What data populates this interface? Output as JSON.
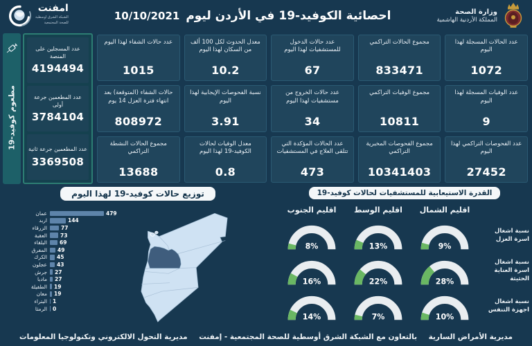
{
  "header": {
    "title": "احصائية الكوفيد-19 في الأردن ليوم",
    "date": "10/10/2021",
    "ministry": {
      "line1": "وزارة الصحة",
      "line2": "المملكة الأردنية الهاشمية"
    },
    "emphnet": {
      "name": "امفنت",
      "tag1": "الشبكة الشرق اوسطية",
      "tag2": "للصحة المجتمعية"
    }
  },
  "stats": [
    {
      "label": "عدد الحالات المسجلة لهذا اليوم",
      "value": "1072"
    },
    {
      "label": "مجموع الحالات التراكمي",
      "value": "833471"
    },
    {
      "label": "عدد حالات الدخول للمستشفيات لهذا اليوم",
      "value": "67"
    },
    {
      "label": "معدل الحدوث لكل 100 ألف من السكان لهذا اليوم",
      "value": "10.2"
    },
    {
      "label": "عدد حالات الشفاء لهذا اليوم",
      "value": "1015"
    },
    {
      "label": "عدد الوفيات المسجلة لهذا اليوم",
      "value": "9"
    },
    {
      "label": "مجموع الوفيات التراكمي",
      "value": "10811"
    },
    {
      "label": "عدد حالات الخروج من مستشفيات لهذا اليوم",
      "value": "34"
    },
    {
      "label": "نسبة الفحوصات الإيجابية لهذا اليوم",
      "value": "3.91"
    },
    {
      "label": "حالات الشفاء (المتوقعة) بعد انتهاء فترة العزل 14 يوم",
      "value": "808972"
    },
    {
      "label": "عدد الفحوصات التراكمي لهذا اليوم",
      "value": "27452"
    },
    {
      "label": "مجموع الفحوصات المخبرية التراكمي",
      "value": "10341403"
    },
    {
      "label": "عدد الحالات المؤكدة التي تتلقى العلاج في المستشفيات",
      "value": "473"
    },
    {
      "label": "معدل الوفيات لحالات الكوفيد-19 لهذا اليوم",
      "value": "0.8"
    },
    {
      "label": "مجموع الحالات النشطة التراكمي",
      "value": "13688"
    }
  ],
  "vaccination": {
    "side_label": "مطعوم كوفيد-19",
    "boxes": [
      {
        "label": "عدد المسجلين على المنصة",
        "value": "4194494"
      },
      {
        "label": "عدد المطعمين جرعة أولى",
        "value": "3784104"
      },
      {
        "label": "عدد المطعمين جرعة ثانية",
        "value": "3369508"
      }
    ]
  },
  "chart_data": [
    {
      "type": "bar",
      "orientation": "horizontal",
      "title": "توزيع حالات كوفيد-19 لهذا اليوم",
      "categories": [
        "عمان",
        "اربد",
        "الزرقاء",
        "العقبة",
        "البلقاء",
        "المفرق",
        "الكرك",
        "عجلون",
        "جرش",
        "مادبا",
        "الطفيلة",
        "معان",
        "البتراء",
        "الرمثا"
      ],
      "values": [
        479,
        144,
        77,
        73,
        69,
        49,
        45,
        43,
        27,
        27,
        19,
        19,
        1,
        0
      ],
      "xlim": [
        0,
        479
      ],
      "bar_color": "#5e84aa"
    },
    {
      "type": "gauge",
      "title": "القدرة الاستيعابية للمستشفيات لحالات كوفيد-19",
      "columns": [
        "اقليم الشمال",
        "اقليم الوسط",
        "اقليم الجنوب"
      ],
      "rows": [
        {
          "label": "نسبة اشغال اسرة العزل",
          "values": [
            9,
            13,
            8
          ]
        },
        {
          "label": "نسبة اشغال اسرة العناية الحثيثة",
          "values": [
            28,
            22,
            16
          ]
        },
        {
          "label": "نسبة اشغال اجهزة التنفس",
          "values": [
            10,
            7,
            14
          ]
        }
      ],
      "unit": "%",
      "range": [
        0,
        100
      ],
      "track_color": "#e9edf0",
      "fill_color": "#6ab763"
    }
  ],
  "footer": {
    "right": "مديرية الأمراض السارية",
    "center": "بالتعاون مع الشبكة الشرق أوسطية للصحة المجتمعية - إمفنت",
    "left": "مديرية التحول الالكتروني وتكنولوجيا المعلومات"
  },
  "colors": {
    "background": "#173850",
    "stat_box": "#20455c",
    "sidebar_teal": "#1d6068",
    "sidebar_border": "#2d7e73",
    "bar": "#5e84aa",
    "gauge_track": "#e9edf0",
    "gauge_fill": "#6ab763",
    "map_fill": "#cfe2f3",
    "map_highlight": "#3f5d7d"
  }
}
